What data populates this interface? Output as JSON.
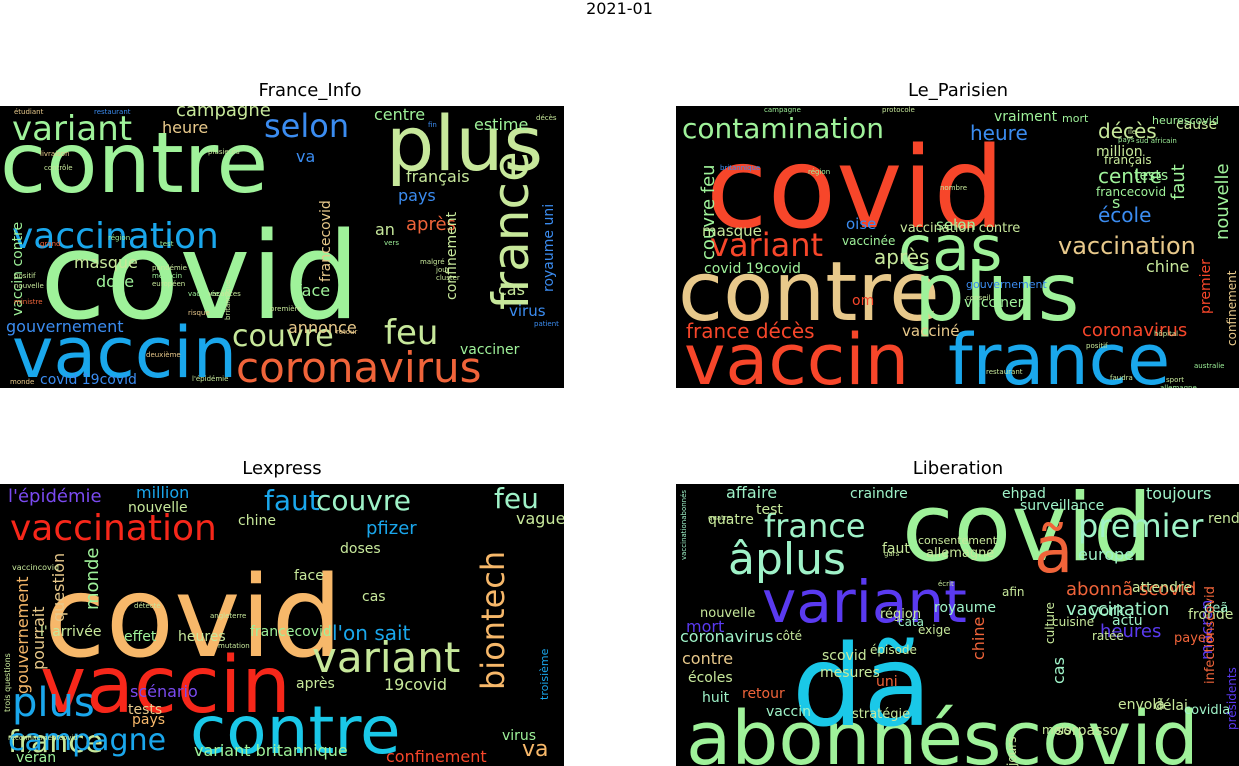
{
  "figure": {
    "title": "2021-01"
  },
  "panels": [
    {
      "id": "france-info",
      "title": "France_Info",
      "words": [
        {
          "t": "covid",
          "c": "#9ff29a"
        },
        {
          "t": "contre",
          "c": "#9ff29a"
        },
        {
          "t": "vaccin",
          "c": "#1aa7ec"
        },
        {
          "t": "plus",
          "c": "#c7e89b"
        },
        {
          "t": "vaccination",
          "c": "#1aa7ec"
        },
        {
          "t": "france",
          "c": "#c7e89b"
        },
        {
          "t": "coronavirus",
          "c": "#f0643a"
        },
        {
          "t": "variant",
          "c": "#9ff29a"
        },
        {
          "t": "selon",
          "c": "#3b8cf0"
        },
        {
          "t": "couvre",
          "c": "#c7e89b"
        },
        {
          "t": "feu",
          "c": "#c7e89b"
        },
        {
          "t": "campagne",
          "c": "#c7e89b"
        },
        {
          "t": "heure",
          "c": "#e8c98b"
        },
        {
          "t": "centre",
          "c": "#9ff29a"
        },
        {
          "t": "estime",
          "c": "#9ff29a"
        },
        {
          "t": "gouvernement",
          "c": "#3b8cf0"
        },
        {
          "t": "masque",
          "c": "#c7e89b"
        },
        {
          "t": "dose",
          "c": "#9ff29a"
        },
        {
          "t": "face",
          "c": "#9ff29a"
        },
        {
          "t": "annonce",
          "c": "#e8c98b"
        },
        {
          "t": "après",
          "c": "#f0643a"
        },
        {
          "t": "français",
          "c": "#c7e89b"
        },
        {
          "t": "pays",
          "c": "#3b8cf0"
        },
        {
          "t": "royaume uni",
          "c": "#3b8cf0"
        },
        {
          "t": "confinement",
          "c": "#c7e89b"
        },
        {
          "t": "cas",
          "c": "#c7e89b"
        },
        {
          "t": "virus",
          "c": "#3b8cf0"
        },
        {
          "t": "vacciner",
          "c": "#9ff29a"
        },
        {
          "t": "va",
          "c": "#3b8cf0"
        },
        {
          "t": "an",
          "c": "#c7e89b"
        },
        {
          "t": "covid 19covid",
          "c": "#3b8cf0"
        },
        {
          "t": "vaccin contre",
          "c": "#9ff29a"
        },
        {
          "t": "francecovid",
          "c": "#e8c98b"
        },
        {
          "t": "plusieurs",
          "c": "#c7e89b"
        },
        {
          "t": "contrôle",
          "c": "#c7e89b"
        },
        {
          "t": "livraison",
          "c": "#e8c98b"
        },
        {
          "t": "britannique",
          "c": "#c7e89b"
        },
        {
          "t": "région",
          "c": "#9ff29a"
        },
        {
          "t": "médecin",
          "c": "#9ff29a"
        },
        {
          "t": "vaccinée",
          "c": "#9ff29a"
        },
        {
          "t": "vacances",
          "c": "#c7e89b"
        },
        {
          "t": "risque",
          "c": "#e8c98b"
        },
        {
          "t": "nouvelle",
          "c": "#c7e89b"
        },
        {
          "t": "européen",
          "c": "#c7e89b"
        },
        {
          "t": "pandémie",
          "c": "#c7e89b"
        },
        {
          "t": "ministre",
          "c": "#f0643a"
        },
        {
          "t": "positif",
          "c": "#c7e89b"
        },
        {
          "t": "étudiant",
          "c": "#e8c98b"
        },
        {
          "t": "restaurant",
          "c": "#3b8cf0"
        },
        {
          "t": "décès",
          "c": "#c7e89b"
        },
        {
          "t": "patient",
          "c": "#3b8cf0"
        },
        {
          "t": "deuxième",
          "c": "#e8c98b"
        },
        {
          "t": "l'épidémie",
          "c": "#c7e89b"
        },
        {
          "t": "monde",
          "c": "#e8c98b"
        },
        {
          "t": "grand",
          "c": "#f0643a"
        },
        {
          "t": "malgré",
          "c": "#c7e89b"
        },
        {
          "t": "cluster",
          "c": "#c7e89b"
        },
        {
          "t": "jour",
          "c": "#c7e89b"
        },
        {
          "t": "fin",
          "c": "#3b8cf0"
        },
        {
          "t": "test",
          "c": "#9ff29a"
        },
        {
          "t": "vers",
          "c": "#9ff29a"
        },
        {
          "t": "première",
          "c": "#c7e89b"
        },
        {
          "t": "retour",
          "c": "#e8c98b"
        }
      ]
    },
    {
      "id": "le-parisien",
      "title": "Le_Parisien",
      "words": [
        {
          "t": "covid",
          "c": "#f7462a"
        },
        {
          "t": "contre",
          "c": "#e8c98b"
        },
        {
          "t": "plus",
          "c": "#9ff29a"
        },
        {
          "t": "france",
          "c": "#1aa7ec"
        },
        {
          "t": "vaccin",
          "c": "#f7462a"
        },
        {
          "t": "cas",
          "c": "#9ff29a"
        },
        {
          "t": "contamination",
          "c": "#9ff29a"
        },
        {
          "t": "variant",
          "c": "#f7462a"
        },
        {
          "t": "vaccination",
          "c": "#e8c98b"
        },
        {
          "t": "heure",
          "c": "#3b8cf0"
        },
        {
          "t": "décès",
          "c": "#c7e89b"
        },
        {
          "t": "faut",
          "c": "#9ff29a"
        },
        {
          "t": "nouvelle",
          "c": "#9ff29a"
        },
        {
          "t": "centre",
          "c": "#9ff29a"
        },
        {
          "t": "école",
          "c": "#3b8cf0"
        },
        {
          "t": "après",
          "c": "#c7e89b"
        },
        {
          "t": "couvre feu",
          "c": "#9ff29a"
        },
        {
          "t": "masque",
          "c": "#c7e89b"
        },
        {
          "t": "oise",
          "c": "#3b8cf0"
        },
        {
          "t": "chine",
          "c": "#c7e89b"
        },
        {
          "t": "coronavirus",
          "c": "#f7462a"
        },
        {
          "t": "france décès",
          "c": "#f7462a"
        },
        {
          "t": "vacciné",
          "c": "#e8c98b"
        },
        {
          "t": "vacciner",
          "c": "#9ff29a"
        },
        {
          "t": "selon",
          "c": "#9ff29a"
        },
        {
          "t": "vraiment",
          "c": "#9ff29a"
        },
        {
          "t": "million",
          "c": "#c7e89b"
        },
        {
          "t": "français",
          "c": "#c7e89b"
        },
        {
          "t": "cause",
          "c": "#c7e89b"
        },
        {
          "t": "premier",
          "c": "#f7462a"
        },
        {
          "t": "confinement",
          "c": "#e8c98b"
        },
        {
          "t": "covid 19covid",
          "c": "#9ff29a"
        },
        {
          "t": "vaccination contre",
          "c": "#c7e89b"
        },
        {
          "t": "vaccinée",
          "c": "#9ff29a"
        },
        {
          "t": "gouvernement",
          "c": "#3b8cf0"
        },
        {
          "t": "francecovid",
          "c": "#9ff29a"
        },
        {
          "t": "heurescovid",
          "c": "#9ff29a"
        },
        {
          "t": "mort",
          "c": "#9ff29a"
        },
        {
          "t": "om",
          "c": "#f7462a"
        },
        {
          "t": "s",
          "c": "#9ff29a"
        },
        {
          "t": "tests",
          "c": "#9ff29a"
        },
        {
          "t": "britannique",
          "c": "#3b8cf0"
        },
        {
          "t": "région",
          "c": "#9ff29a"
        },
        {
          "t": "hôpital",
          "c": "#c7e89b"
        },
        {
          "t": "allemagne",
          "c": "#9ff29a"
        },
        {
          "t": "australie",
          "c": "#9ff29a"
        },
        {
          "t": "sport",
          "c": "#c7e89b"
        },
        {
          "t": "pays",
          "c": "#9ff29a"
        },
        {
          "t": "faudra",
          "c": "#c7e89b"
        },
        {
          "t": "restaurant",
          "c": "#c7e89b"
        },
        {
          "t": "conseil",
          "c": "#c7e89b"
        },
        {
          "t": "positif",
          "c": "#c7e89b"
        },
        {
          "t": "nombre",
          "c": "#c7e89b"
        },
        {
          "t": "campagne",
          "c": "#9ff29a"
        },
        {
          "t": "protocole",
          "c": "#c7e89b"
        },
        {
          "t": "sud africain",
          "c": "#9ff29a"
        },
        {
          "t": "ile",
          "c": "#c7e89b"
        }
      ]
    },
    {
      "id": "lexpress",
      "title": "Lexpress",
      "words": [
        {
          "t": "covid",
          "c": "#f7b86a"
        },
        {
          "t": "contre",
          "c": "#1ac8e8"
        },
        {
          "t": "vaccin",
          "c": "#f7271a"
        },
        {
          "t": "vaccination",
          "c": "#f7271a"
        },
        {
          "t": "france",
          "c": "#c7e89b"
        },
        {
          "t": "variant",
          "c": "#c7e89b"
        },
        {
          "t": "biontech",
          "c": "#f7b86a"
        },
        {
          "t": "plus",
          "c": "#1aa7ec"
        },
        {
          "t": "campagne",
          "c": "#1aa7ec"
        },
        {
          "t": "couvre",
          "c": "#9ff2c8"
        },
        {
          "t": "feu",
          "c": "#9ff2c8"
        },
        {
          "t": "faut",
          "c": "#1aa7ec"
        },
        {
          "t": "l'épidémie",
          "c": "#7a4af0"
        },
        {
          "t": "million",
          "c": "#1aa7ec"
        },
        {
          "t": "nouvelle",
          "c": "#c7e89b"
        },
        {
          "t": "chine",
          "c": "#c7e89b"
        },
        {
          "t": "pfizer",
          "c": "#1aa7ec"
        },
        {
          "t": "vague",
          "c": "#c7e89b"
        },
        {
          "t": "doses",
          "c": "#c7e89b"
        },
        {
          "t": "face",
          "c": "#c7e89b"
        },
        {
          "t": "cas",
          "c": "#c7e89b"
        },
        {
          "t": "l'on sait",
          "c": "#1aa7ec"
        },
        {
          "t": "francecovid",
          "c": "#9ff29a"
        },
        {
          "t": "effet",
          "c": "#9ff29a"
        },
        {
          "t": "heures",
          "c": "#c7e89b"
        },
        {
          "t": "19covid",
          "c": "#c7e89b"
        },
        {
          "t": "tests",
          "c": "#e8c98b"
        },
        {
          "t": "scénario",
          "c": "#7a4af0"
        },
        {
          "t": "après",
          "c": "#c7e89b"
        },
        {
          "t": "pays",
          "c": "#f7b86a"
        },
        {
          "t": "va",
          "c": "#f7b86a"
        },
        {
          "t": "virus",
          "c": "#9ff29a"
        },
        {
          "t": "confinement",
          "c": "#f7462a"
        },
        {
          "t": "variant britannique",
          "c": "#9ff29a"
        },
        {
          "t": "véran",
          "c": "#9ff29a"
        },
        {
          "t": "monde",
          "c": "#9ff29a"
        },
        {
          "t": "gouvernement",
          "c": "#f7b86a"
        },
        {
          "t": "pourrait",
          "c": "#e8c98b"
        },
        {
          "t": "question",
          "c": "#e8c98b"
        },
        {
          "t": "l' arrivée",
          "c": "#c7e89b"
        },
        {
          "t": "troisième",
          "c": "#1aa7ec"
        },
        {
          "t": "vaccincovid",
          "c": "#c7e89b"
        },
        {
          "t": "trois questions",
          "c": "#c7e89b"
        },
        {
          "t": "angleterre",
          "c": "#c7e89b"
        },
        {
          "t": "détecté",
          "c": "#c7e89b"
        },
        {
          "t": "mutation",
          "c": "#c7e89b"
        },
        {
          "t": "reconfinementcovid",
          "c": "#c7e89b"
        }
      ]
    },
    {
      "id": "liberation",
      "title": "Liberation",
      "words": [
        {
          "t": "covid",
          "c": "#9ff29a"
        },
        {
          "t": "abonnéscovid",
          "c": "#9ff29a"
        },
        {
          "t": "dã",
          "c": "#1ac8e8"
        },
        {
          "t": "ã",
          "c": "#f0643a"
        },
        {
          "t": "variant",
          "c": "#5a3af0"
        },
        {
          "t": "âplus",
          "c": "#9ff2c8"
        },
        {
          "t": "premier",
          "c": "#9ff2c8"
        },
        {
          "t": "france",
          "c": "#9ff2c8"
        },
        {
          "t": "abonnã scovid",
          "c": "#f0643a"
        },
        {
          "t": "vaccination",
          "c": "#9ff2c8"
        },
        {
          "t": "heures",
          "c": "#5a3af0"
        },
        {
          "t": "toujours",
          "c": "#9ff2c8"
        },
        {
          "t": "surveillance",
          "c": "#9ff2c8"
        },
        {
          "t": "affaire",
          "c": "#9ff2c8"
        },
        {
          "t": "craindre",
          "c": "#9ff2c8"
        },
        {
          "t": "ehpad",
          "c": "#9ff2c8"
        },
        {
          "t": "catalaneabonnésau",
          "c": "#9ff2c8"
        },
        {
          "t": "quatre",
          "c": "#c7e89b"
        },
        {
          "t": "test",
          "c": "#c7e89b"
        },
        {
          "t": "allemagne",
          "c": "#c7e89b"
        },
        {
          "t": "consentement",
          "c": "#c7e89b"
        },
        {
          "t": "europe",
          "c": "#9ff2c8"
        },
        {
          "t": "mort",
          "c": "#5a3af0"
        },
        {
          "t": "nouvelle",
          "c": "#c7e89b"
        },
        {
          "t": "coronavirus",
          "c": "#9ff2c8"
        },
        {
          "t": "contre",
          "c": "#e8c98b"
        },
        {
          "t": "scovid",
          "c": "#c7e89b"
        },
        {
          "t": "mesures",
          "c": "#c7e89b"
        },
        {
          "t": "écoles",
          "c": "#c7e89b"
        },
        {
          "t": "huit",
          "c": "#9ff2c8"
        },
        {
          "t": "vaccin",
          "c": "#9ff2c8"
        },
        {
          "t": "stratégie",
          "c": "#c7e89b"
        },
        {
          "t": "retour",
          "c": "#f0643a"
        },
        {
          "t": "cas",
          "c": "#9ff2c8"
        },
        {
          "t": "uni",
          "c": "#f0643a"
        },
        {
          "t": "royaume",
          "c": "#9ff2c8"
        },
        {
          "t": "faut",
          "c": "#c7e89b"
        },
        {
          "t": "chine",
          "c": "#f0643a"
        },
        {
          "t": "délai",
          "c": "#c7e89b"
        },
        {
          "t": "macron",
          "c": "#5a3af0"
        },
        {
          "t": "sorpasso",
          "c": "#c7e89b"
        },
        {
          "t": "culture",
          "c": "#c7e89b"
        },
        {
          "t": "mois",
          "c": "#c7e89b"
        },
        {
          "t": "jours",
          "c": "#c7e89b"
        },
        {
          "t": "covidla",
          "c": "#9ff2c8"
        },
        {
          "t": "envolã",
          "c": "#c7e89b"
        },
        {
          "t": "york",
          "c": "#9ff2c8"
        },
        {
          "t": "actu",
          "c": "#9ff2c8"
        },
        {
          "t": "attendre",
          "c": "#c7e89b"
        },
        {
          "t": "fronde",
          "c": "#c7e89b"
        },
        {
          "t": "rendez",
          "c": "#c7e89b"
        },
        {
          "t": "région",
          "c": "#c7e89b"
        },
        {
          "t": "afin",
          "c": "#c7e89b"
        },
        {
          "t": "côté",
          "c": "#c7e89b"
        },
        {
          "t": "exige",
          "c": "#c7e89b"
        },
        {
          "t": "ratée",
          "c": "#c7e89b"
        },
        {
          "t": "deã",
          "c": "#9ff2c8"
        },
        {
          "t": "payez",
          "c": "#f0643a"
        },
        {
          "t": "épisode",
          "c": "#c7e89b"
        },
        {
          "t": "cuisine",
          "c": "#c7e89b"
        },
        {
          "t": "cata",
          "c": "#9ff2c8"
        },
        {
          "t": "infectionscovid",
          "c": "#f0643a"
        },
        {
          "t": "présidents",
          "c": "#5a3af0"
        },
        {
          "t": "vaccinationabonnés",
          "c": "#9ff2c8"
        },
        {
          "t": "écrit",
          "c": "#c7e89b"
        },
        {
          "t": "gars",
          "c": "#c7e89b"
        },
        {
          "t": "quatre",
          "c": "#c7e89b"
        }
      ]
    }
  ]
}
